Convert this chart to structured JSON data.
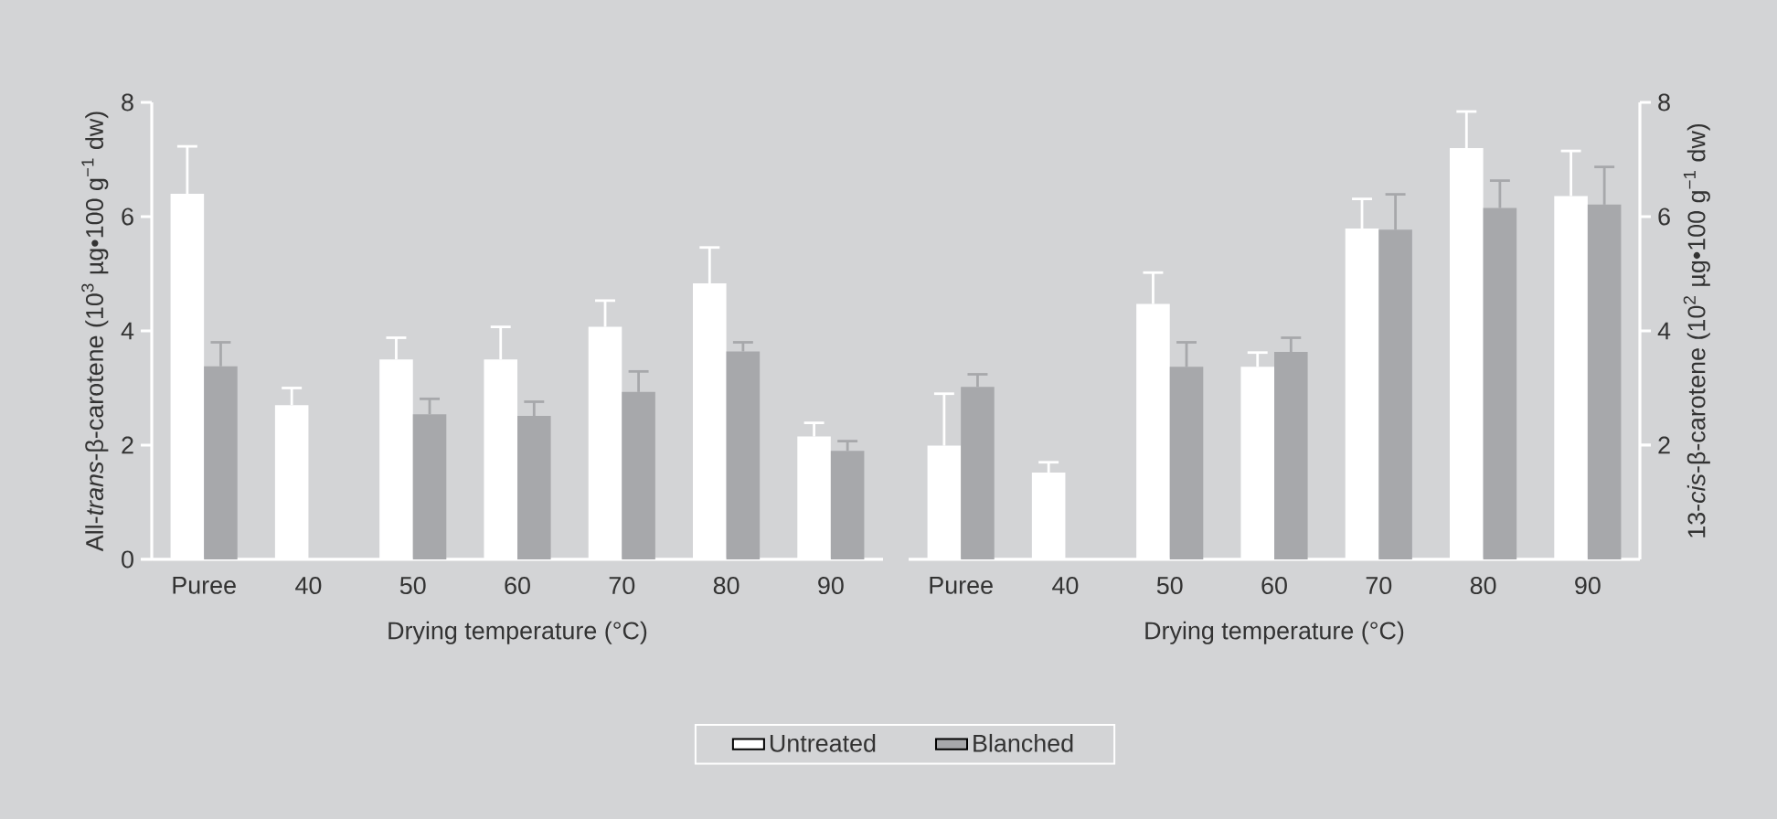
{
  "chart_data": [
    {
      "type": "bar",
      "categories": [
        "Puree",
        "40",
        "50",
        "60",
        "70",
        "80",
        "90"
      ],
      "xlabel": "Drying temperature (°C)",
      "ylabel": "All-*trans*-β-carotene (10$^{3}$ µg•100 g$^{−1}$ dw)",
      "ylim": [
        0,
        8
      ],
      "yticks": [
        0,
        2,
        4,
        6,
        8
      ],
      "grid": false,
      "legend": "bottom",
      "series": [
        {
          "name": "Untreated",
          "color": "#ffffff",
          "values": [
            6.4,
            2.7,
            3.5,
            3.5,
            4.07,
            4.83,
            2.15
          ],
          "errors": [
            [
              6.4,
              7.23
            ],
            [
              2.7,
              3.0
            ],
            [
              3.5,
              3.88
            ],
            [
              3.5,
              4.07
            ],
            [
              4.07,
              4.53
            ],
            [
              4.83,
              5.46
            ],
            [
              2.15,
              2.39
            ]
          ]
        },
        {
          "name": "Blanched",
          "color": "#a7a8ab",
          "values": [
            3.38,
            null,
            2.54,
            2.51,
            2.93,
            3.64,
            1.9
          ],
          "errors": [
            [
              3.38,
              3.8
            ],
            null,
            [
              2.54,
              2.81
            ],
            [
              2.51,
              2.76
            ],
            [
              2.93,
              3.29
            ],
            [
              3.64,
              3.8
            ],
            [
              1.9,
              2.07
            ]
          ]
        }
      ]
    },
    {
      "type": "bar",
      "categories": [
        "Puree",
        "40",
        "50",
        "60",
        "70",
        "80",
        "90"
      ],
      "xlabel": "Drying temperature (°C)",
      "y2label": "13-*cis*-β-carotene (10$^{2}$ µg•100 g$^{−1}$ dw)",
      "y2lim": [
        0,
        8
      ],
      "y2ticks": [
        2,
        4,
        6,
        8
      ],
      "grid": false,
      "series": [
        {
          "color": "#ffffff",
          "axis": "y2",
          "values": [
            1.99,
            1.52,
            4.47,
            3.37,
            5.79,
            7.2,
            6.36
          ],
          "errors": [
            [
              1.99,
              2.9
            ],
            [
              1.52,
              1.7
            ],
            [
              4.47,
              5.02
            ],
            [
              3.37,
              3.62
            ],
            [
              5.79,
              6.31
            ],
            [
              7.2,
              7.84
            ],
            [
              6.36,
              7.15
            ]
          ]
        },
        {
          "color": "#a7a8ab",
          "axis": "y2",
          "values": [
            3.02,
            null,
            3.37,
            3.63,
            5.77,
            6.15,
            6.21
          ],
          "errors": [
            [
              3.02,
              3.24
            ],
            null,
            [
              3.37,
              3.8
            ],
            [
              3.63,
              3.88
            ],
            [
              5.77,
              6.39
            ],
            [
              6.15,
              6.63
            ],
            [
              6.21,
              6.87
            ]
          ]
        }
      ]
    }
  ]
}
